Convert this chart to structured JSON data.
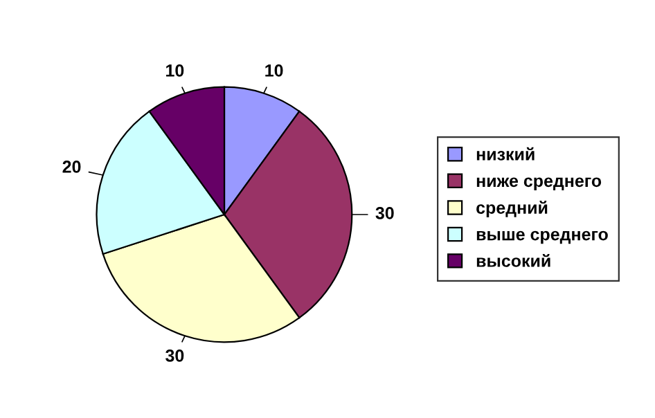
{
  "chart_data": {
    "type": "pie",
    "categories": [
      "низкий",
      "ниже среднего",
      "средний",
      "выше среднего",
      "высокий"
    ],
    "values": [
      10,
      30,
      30,
      20,
      10
    ],
    "colors": [
      "#9999ff",
      "#993366",
      "#ffffcc",
      "#ccffff",
      "#660066"
    ],
    "data_labels": true,
    "legend": "right"
  }
}
